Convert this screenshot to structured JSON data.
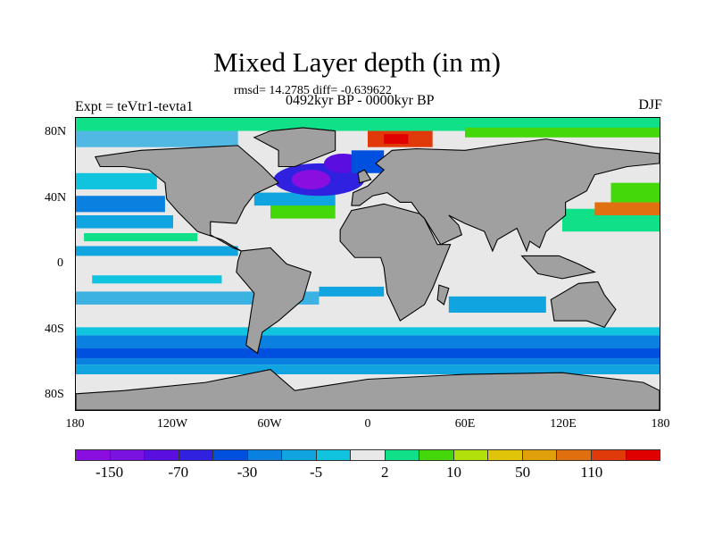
{
  "title": "Mixed Layer depth (in m)",
  "stats": "rmsd= 14.2785 diff= -0.639622",
  "period": "0492kyr BP - 0000kyr BP",
  "experiment": "Expt = teVtr1-tevta1",
  "season": "DJF",
  "x_ticks": [
    "180",
    "120W",
    "60W",
    "0",
    "60E",
    "120E",
    "180"
  ],
  "y_ticks": [
    "80N",
    "40N",
    "0",
    "40S",
    "80S"
  ],
  "colorbar": {
    "colors": [
      "#8a0ee0",
      "#7a12e0",
      "#5a0ee0",
      "#3020e0",
      "#0050e0",
      "#0a80e0",
      "#10a4e0",
      "#10c4e0",
      "#e8e8e8",
      "#10e088",
      "#44d80a",
      "#b2e00a",
      "#e0c40a",
      "#e0a00a",
      "#e0700e",
      "#e03a0a",
      "#e00000"
    ],
    "labels": [
      "-150",
      "-70",
      "-30",
      "-5",
      "2",
      "10",
      "50",
      "110"
    ]
  },
  "land_color": "#a0a0a0"
}
